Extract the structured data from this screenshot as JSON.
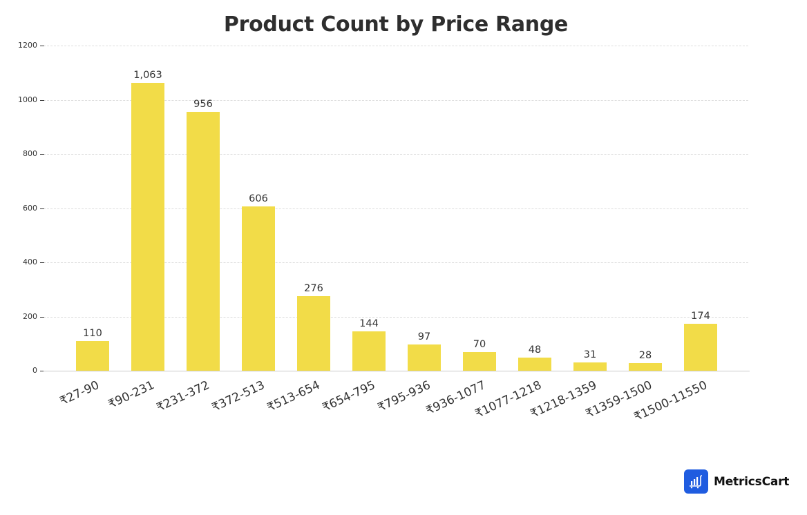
{
  "chart_data": {
    "type": "bar",
    "title": "Product Count by Price Range",
    "xlabel": "",
    "ylabel": "",
    "categories": [
      "₹27-90",
      "₹90-231",
      "₹231-372",
      "₹372-513",
      "₹513-654",
      "₹654-795",
      "₹795-936",
      "₹936-1077",
      "₹1077-1218",
      "₹1218-1359",
      "₹1359-1500",
      "₹1500-11550"
    ],
    "values": [
      110,
      1063,
      956,
      606,
      276,
      144,
      97,
      70,
      48,
      31,
      28,
      174
    ],
    "value_labels": [
      "110",
      "1,063",
      "956",
      "606",
      "276",
      "144",
      "97",
      "70",
      "48",
      "31",
      "28",
      "174"
    ],
    "ylim": [
      0,
      1200
    ],
    "yticks": [
      0,
      200,
      400,
      600,
      800,
      1000,
      1200
    ],
    "grid": true,
    "grid_style": "dashed horizontal",
    "legend": null,
    "bar_color": "#f2dc48"
  },
  "branding": {
    "name": "MetricsCart",
    "icon": "bar-chart-cart-icon",
    "icon_color": "#1f5ce0"
  }
}
